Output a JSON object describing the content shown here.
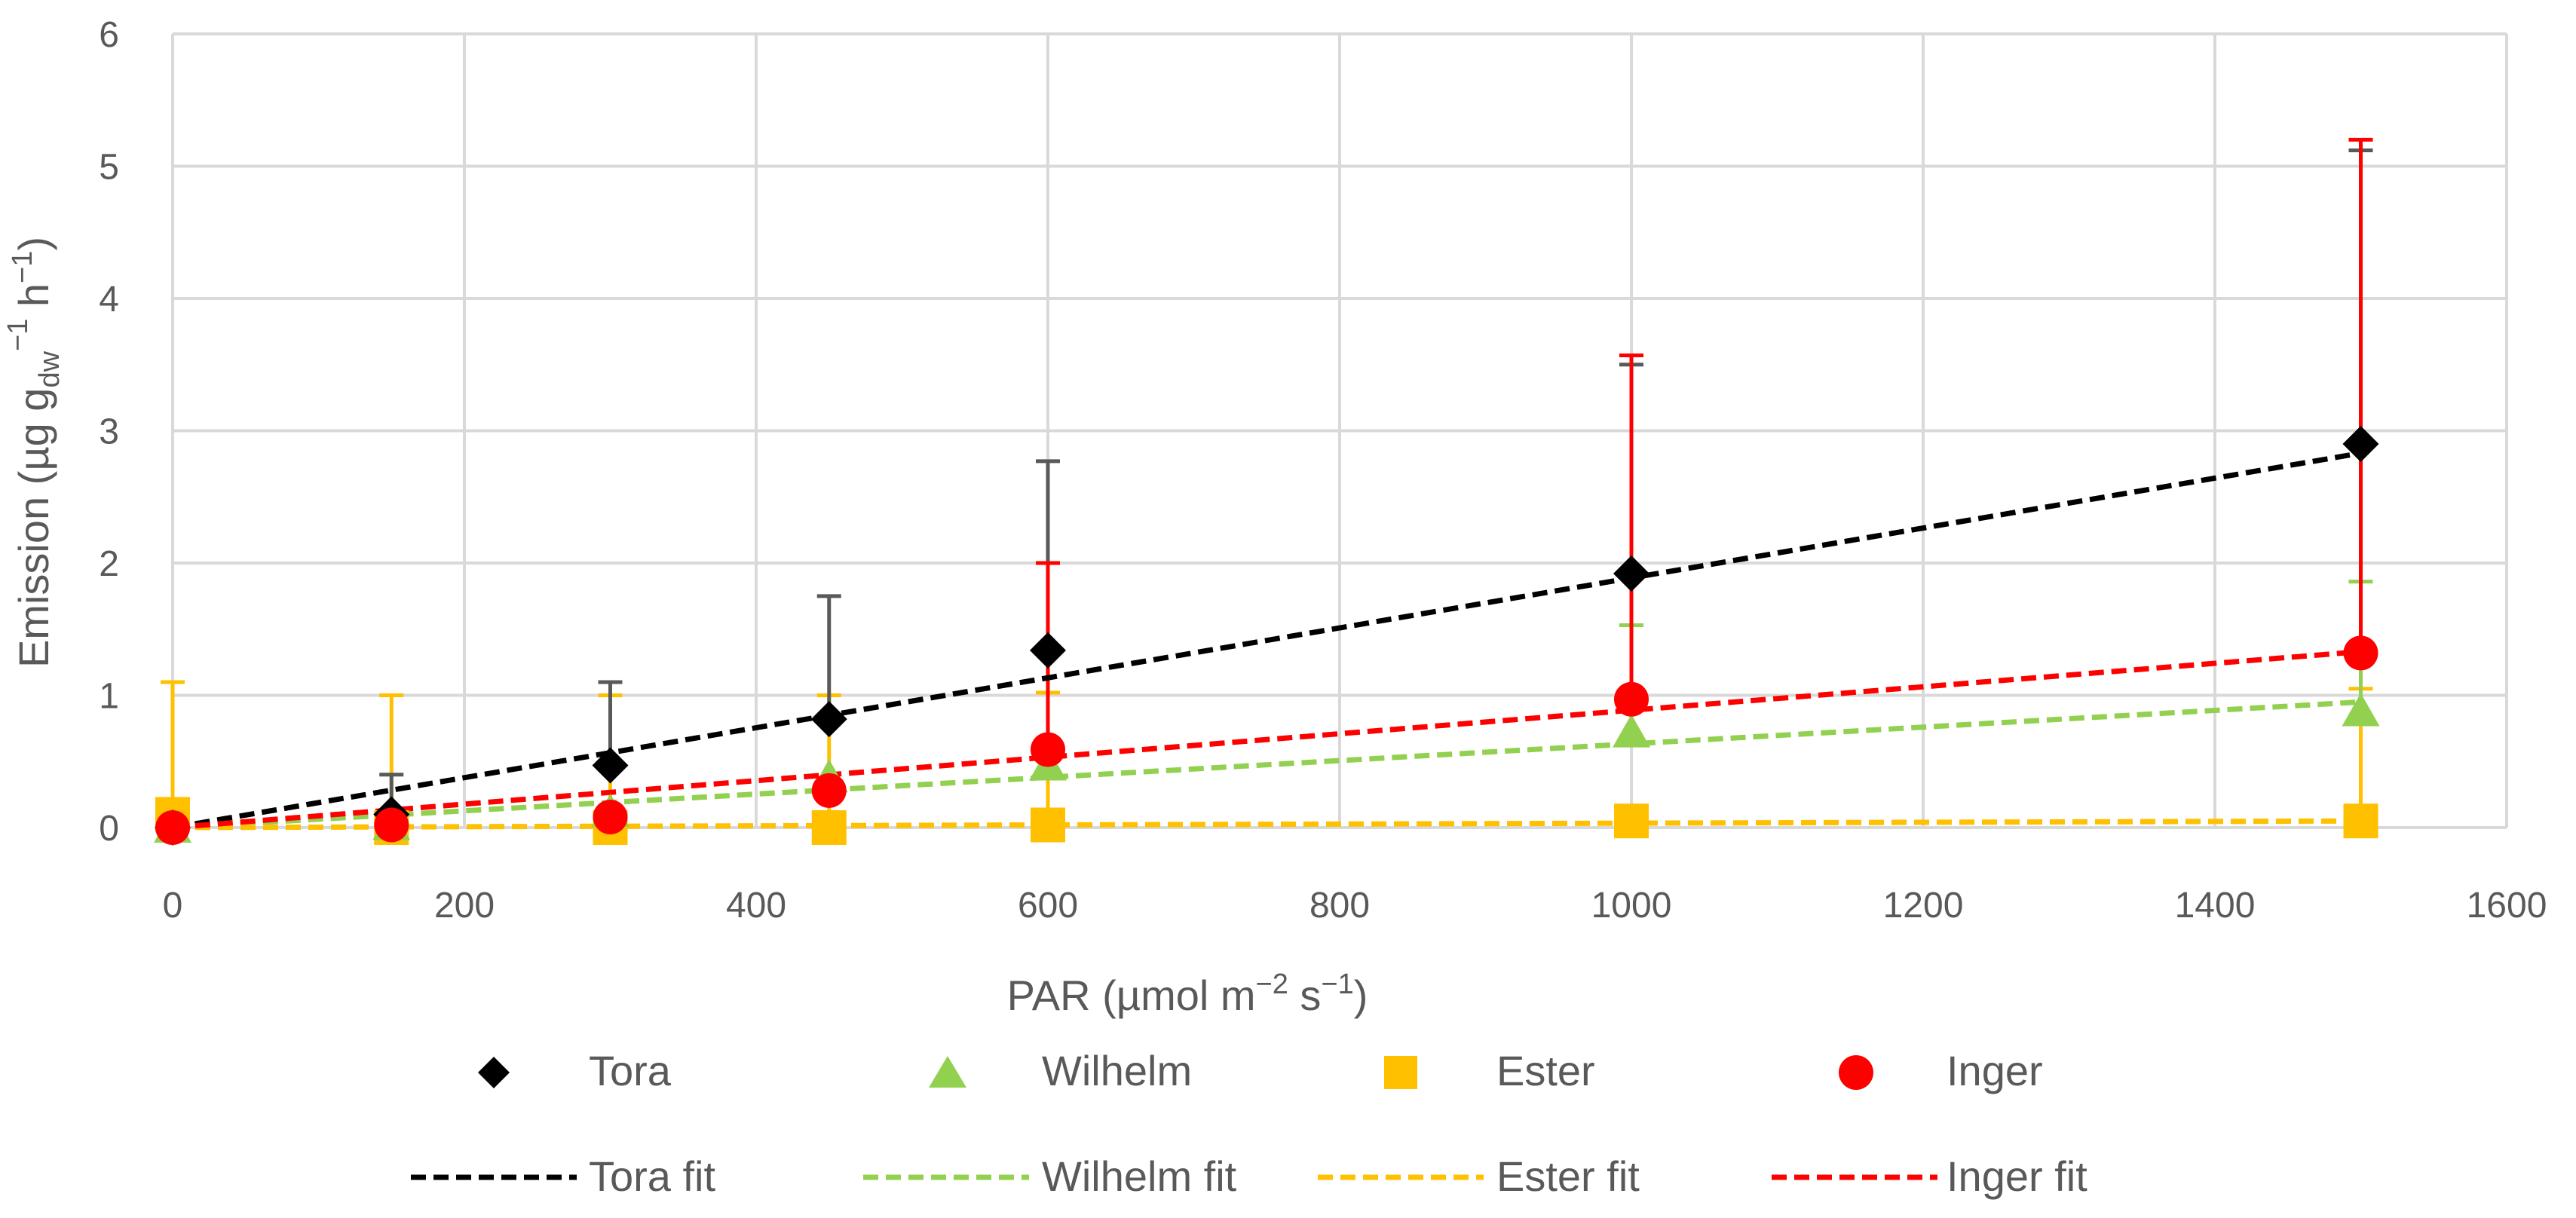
{
  "chart_data": {
    "type": "scatter",
    "xlabel_main": "PAR (µmol m",
    "xlabel_exp1": "−2",
    "xlabel_mid": " s",
    "xlabel_exp2": "−1",
    "xlabel_end": ")",
    "ylabel_main": "Emission (µg g",
    "ylabel_sub": "dw",
    "ylabel_exp1": "−1",
    "ylabel_mid": " h",
    "ylabel_exp2": "−1",
    "ylabel_end": ")",
    "xlim": [
      0,
      1600
    ],
    "ylim": [
      0,
      6
    ],
    "x_ticks": [
      0,
      200,
      400,
      600,
      800,
      1000,
      1200,
      1400,
      1600
    ],
    "y_ticks": [
      0,
      1,
      2,
      3,
      4,
      5,
      6
    ],
    "grid": true,
    "x": [
      0,
      150,
      300,
      450,
      600,
      1000,
      1500
    ],
    "series": [
      {
        "name": "Tora",
        "marker": "diamond",
        "color": "#000000",
        "error_color": "#595959",
        "values": [
          0.0,
          0.1,
          0.47,
          0.82,
          1.34,
          1.92,
          2.9
        ],
        "error_upper": [
          0.0,
          0.4,
          1.1,
          1.75,
          2.77,
          3.5,
          5.12
        ]
      },
      {
        "name": "Wilhelm",
        "marker": "triangle",
        "color": "#92D050",
        "error_color": "#92D050",
        "values": [
          0.0,
          0.02,
          0.12,
          0.38,
          0.47,
          0.72,
          0.88
        ],
        "error_upper": [
          0.0,
          0.0,
          0.0,
          0.0,
          0.0,
          1.53,
          1.86
        ]
      },
      {
        "name": "Ester",
        "marker": "square",
        "color": "#FFC000",
        "error_color": "#FFC000",
        "values": [
          0.1,
          0.0,
          0.0,
          0.0,
          0.02,
          0.05,
          0.05
        ],
        "error_upper": [
          1.1,
          1.0,
          1.0,
          1.0,
          1.02,
          0.0,
          1.05
        ]
      },
      {
        "name": "Inger",
        "marker": "circle",
        "color": "#FF0000",
        "error_color": "#FF0000",
        "values": [
          0.0,
          0.02,
          0.08,
          0.28,
          0.59,
          0.97,
          1.32
        ],
        "error_upper": [
          0.0,
          0.0,
          0.0,
          0.0,
          2.0,
          3.57,
          5.2
        ]
      }
    ],
    "fits": [
      {
        "name": "Tora fit",
        "color": "#000000",
        "slope": 0.001887
      },
      {
        "name": "Wilhelm fit",
        "color": "#92D050",
        "slope": 0.000633
      },
      {
        "name": "Ester fit",
        "color": "#FFC000",
        "slope": 3.33e-05
      },
      {
        "name": "Inger fit",
        "color": "#FF0000",
        "slope": 0.000887
      }
    ],
    "legend_position": "bottom"
  }
}
